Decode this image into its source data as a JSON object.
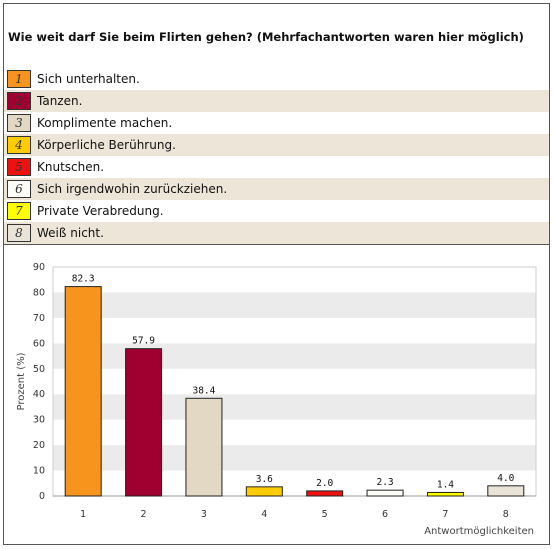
{
  "question": "Wie weit darf Sie beim Flirten gehen? (Mehrfachantworten waren hier möglich)",
  "legend": [
    {
      "num": "1",
      "label": "Sich unterhalten.",
      "color": "#f7941d"
    },
    {
      "num": "2",
      "label": "Tanzen.",
      "color": "#a00030"
    },
    {
      "num": "3",
      "label": "Komplimente machen.",
      "color": "#e2d8c4"
    },
    {
      "num": "4",
      "label": "Körperliche Berührung.",
      "color": "#ffcc00"
    },
    {
      "num": "5",
      "label": "Knutschen.",
      "color": "#ee1111"
    },
    {
      "num": "6",
      "label": "Sich irgendwohin zurückziehen.",
      "color": "#fdfdf7"
    },
    {
      "num": "7",
      "label": "Private Verabredung.",
      "color": "#ffff00"
    },
    {
      "num": "8",
      "label": "Weiß nicht.",
      "color": "#eae4d8"
    }
  ],
  "chart_data": {
    "type": "bar",
    "categories": [
      "1",
      "2",
      "3",
      "4",
      "5",
      "6",
      "7",
      "8"
    ],
    "values": [
      82.3,
      57.9,
      38.4,
      3.6,
      2.0,
      2.3,
      1.4,
      4.0
    ],
    "value_labels": [
      "82.3",
      "57.9",
      "38.4",
      "3.6",
      "2.0",
      "2.3",
      "1.4",
      "4.0"
    ],
    "colors": [
      "#f7941d",
      "#a00030",
      "#e2d8c4",
      "#ffcc00",
      "#ee1111",
      "#fdfdf7",
      "#ffff00",
      "#eae4d8"
    ],
    "title": "",
    "xlabel": "Antwortmöglichkeiten",
    "ylabel": "Prozent (%)",
    "ylim": [
      0,
      90
    ],
    "yticks": [
      0,
      10,
      20,
      30,
      40,
      50,
      60,
      70,
      80,
      90
    ],
    "grid": "horizontal alternating bands",
    "legend": "above chart"
  }
}
